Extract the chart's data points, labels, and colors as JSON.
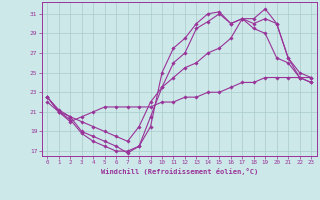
{
  "xlabel": "Windchill (Refroidissement éolien,°C)",
  "background_color": "#cce8e8",
  "grid_color": "#aacccc",
  "line_color": "#993399",
  "x_ticks": [
    0,
    1,
    2,
    3,
    4,
    5,
    6,
    7,
    8,
    9,
    10,
    11,
    12,
    13,
    14,
    15,
    16,
    17,
    18,
    19,
    20,
    21,
    22,
    23
  ],
  "y_ticks": [
    17,
    19,
    21,
    23,
    25,
    27,
    29,
    31
  ],
  "xlim": [
    -0.5,
    23.5
  ],
  "ylim": [
    16.5,
    32.2
  ],
  "lines": [
    [
      22.5,
      21.0,
      20.5,
      19.0,
      18.5,
      18.0,
      17.5,
      16.8,
      17.5,
      19.5,
      25.0,
      27.5,
      28.5,
      30.0,
      31.0,
      31.2,
      30.0,
      30.5,
      29.5,
      29.0,
      26.5,
      26.0,
      24.5,
      24.5
    ],
    [
      22.5,
      21.0,
      20.2,
      18.8,
      18.0,
      17.5,
      17.0,
      17.0,
      17.5,
      20.5,
      23.5,
      26.0,
      27.0,
      29.5,
      30.2,
      31.0,
      30.0,
      30.5,
      30.0,
      30.5,
      30.0,
      26.5,
      24.5,
      24.0
    ],
    [
      22.5,
      21.2,
      20.5,
      20.0,
      19.5,
      19.0,
      18.5,
      18.0,
      19.5,
      22.0,
      23.5,
      24.5,
      25.5,
      26.0,
      27.0,
      27.5,
      28.5,
      30.5,
      30.5,
      31.5,
      30.0,
      26.5,
      25.0,
      24.5
    ],
    [
      22.0,
      21.0,
      20.0,
      20.5,
      21.0,
      21.5,
      21.5,
      21.5,
      21.5,
      21.5,
      22.0,
      22.0,
      22.5,
      22.5,
      23.0,
      23.0,
      23.5,
      24.0,
      24.0,
      24.5,
      24.5,
      24.5,
      24.5,
      24.0
    ]
  ]
}
